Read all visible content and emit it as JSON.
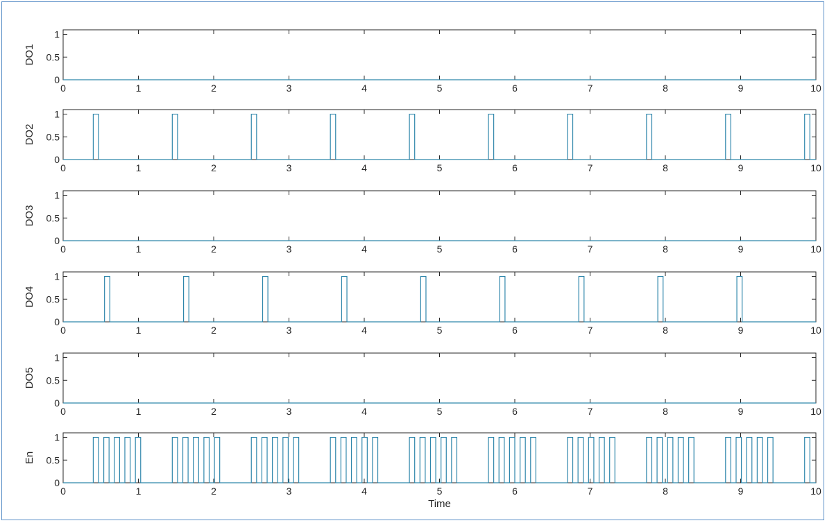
{
  "chart_data": [
    {
      "type": "line",
      "ylabel": "DO1",
      "xlim": [
        0,
        10
      ],
      "ylim": [
        0,
        1.1
      ],
      "x_ticks": [
        "0",
        "1",
        "2",
        "3",
        "4",
        "5",
        "6",
        "7",
        "8",
        "9",
        "10"
      ],
      "y_ticks": [
        "0",
        "0.5",
        "1"
      ],
      "pulses": [],
      "color": "#2e86ab"
    },
    {
      "type": "line",
      "ylabel": "DO2",
      "xlim": [
        0,
        10
      ],
      "ylim": [
        0,
        1.1
      ],
      "x_ticks": [
        "0",
        "1",
        "2",
        "3",
        "4",
        "5",
        "6",
        "7",
        "8",
        "9",
        "10"
      ],
      "y_ticks": [
        "0",
        "0.5",
        "1"
      ],
      "pulses": [
        [
          0.4,
          0.47
        ],
        [
          1.45,
          1.52
        ],
        [
          2.5,
          2.57
        ],
        [
          3.55,
          3.62
        ],
        [
          4.6,
          4.67
        ],
        [
          5.65,
          5.72
        ],
        [
          6.7,
          6.77
        ],
        [
          7.75,
          7.82
        ],
        [
          8.8,
          8.87
        ],
        [
          9.85,
          9.92
        ]
      ],
      "color": "#2e86ab"
    },
    {
      "type": "line",
      "ylabel": "DO3",
      "xlim": [
        0,
        10
      ],
      "ylim": [
        0,
        1.1
      ],
      "x_ticks": [
        "0",
        "1",
        "2",
        "3",
        "4",
        "5",
        "6",
        "7",
        "8",
        "9",
        "10"
      ],
      "y_ticks": [
        "0",
        "0.5",
        "1"
      ],
      "pulses": [],
      "color": "#2e86ab"
    },
    {
      "type": "line",
      "ylabel": "DO4",
      "xlim": [
        0,
        10
      ],
      "ylim": [
        0,
        1.1
      ],
      "x_ticks": [
        "0",
        "1",
        "2",
        "3",
        "4",
        "5",
        "6",
        "7",
        "8",
        "9",
        "10"
      ],
      "y_ticks": [
        "0",
        "0.5",
        "1"
      ],
      "pulses": [
        [
          0.55,
          0.62
        ],
        [
          1.6,
          1.67
        ],
        [
          2.65,
          2.72
        ],
        [
          3.7,
          3.77
        ],
        [
          4.75,
          4.82
        ],
        [
          5.8,
          5.87
        ],
        [
          6.85,
          6.92
        ],
        [
          7.9,
          7.97
        ],
        [
          8.95,
          9.02
        ]
      ],
      "color": "#2e86ab"
    },
    {
      "type": "line",
      "ylabel": "DO5",
      "xlim": [
        0,
        10
      ],
      "ylim": [
        0,
        1.1
      ],
      "x_ticks": [
        "0",
        "1",
        "2",
        "3",
        "4",
        "5",
        "6",
        "7",
        "8",
        "9",
        "10"
      ],
      "y_ticks": [
        "0",
        "0.5",
        "1"
      ],
      "pulses": [],
      "color": "#2e86ab"
    },
    {
      "type": "line",
      "ylabel": "En",
      "xlabel": "Time",
      "xlim": [
        0,
        10
      ],
      "ylim": [
        0,
        1.1
      ],
      "x_ticks": [
        "0",
        "1",
        "2",
        "3",
        "4",
        "5",
        "6",
        "7",
        "8",
        "9",
        "10"
      ],
      "y_ticks": [
        "0",
        "0.5",
        "1"
      ],
      "pulses": [
        [
          0.4,
          0.47
        ],
        [
          0.54,
          0.61
        ],
        [
          0.68,
          0.75
        ],
        [
          0.82,
          0.89
        ],
        [
          0.96,
          1.03
        ],
        [
          1.45,
          1.52
        ],
        [
          1.59,
          1.66
        ],
        [
          1.73,
          1.8
        ],
        [
          1.87,
          1.94
        ],
        [
          2.01,
          2.08
        ],
        [
          2.5,
          2.57
        ],
        [
          2.64,
          2.71
        ],
        [
          2.78,
          2.85
        ],
        [
          2.92,
          2.99
        ],
        [
          3.06,
          3.13
        ],
        [
          3.55,
          3.62
        ],
        [
          3.69,
          3.76
        ],
        [
          3.83,
          3.9
        ],
        [
          3.97,
          4.04
        ],
        [
          4.11,
          4.18
        ],
        [
          4.6,
          4.67
        ],
        [
          4.74,
          4.81
        ],
        [
          4.88,
          4.95
        ],
        [
          5.02,
          5.09
        ],
        [
          5.16,
          5.23
        ],
        [
          5.65,
          5.72
        ],
        [
          5.79,
          5.86
        ],
        [
          5.93,
          6.0
        ],
        [
          6.07,
          6.14
        ],
        [
          6.21,
          6.28
        ],
        [
          6.7,
          6.77
        ],
        [
          6.84,
          6.91
        ],
        [
          6.98,
          7.05
        ],
        [
          7.12,
          7.19
        ],
        [
          7.26,
          7.33
        ],
        [
          7.75,
          7.82
        ],
        [
          7.89,
          7.96
        ],
        [
          8.03,
          8.1
        ],
        [
          8.17,
          8.24
        ],
        [
          8.31,
          8.38
        ],
        [
          8.8,
          8.87
        ],
        [
          8.94,
          9.01
        ],
        [
          9.08,
          9.15
        ],
        [
          9.22,
          9.29
        ],
        [
          9.36,
          9.43
        ],
        [
          9.85,
          9.92
        ]
      ],
      "color": "#2e86ab"
    }
  ]
}
